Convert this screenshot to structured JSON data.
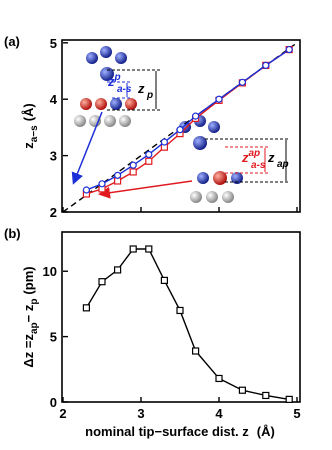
{
  "chart_data": [
    {
      "type": "line",
      "label": "(a)",
      "ylabel": [
        "z",
        "a−s",
        "(Å)"
      ],
      "xlim": [
        2,
        5
      ],
      "xticks": [
        2,
        3,
        4,
        5
      ],
      "ylim": [
        2,
        5.05
      ],
      "yticks": [
        2,
        3,
        4,
        5
      ],
      "series": [
        {
          "color": "#000000",
          "dash": true,
          "x": [
            2,
            5
          ],
          "values": [
            2,
            5
          ]
        },
        {
          "color": "#e0191f",
          "marker": "square",
          "x": [
            2.3,
            2.5,
            2.7,
            2.9,
            3.1,
            3.3,
            3.5,
            3.7,
            4.0,
            4.3,
            4.6,
            4.9
          ],
          "values": [
            2.32,
            2.41,
            2.55,
            2.71,
            2.9,
            3.15,
            3.39,
            3.66,
            3.98,
            4.29,
            4.6,
            4.88
          ]
        },
        {
          "color": "#1c2fd8",
          "marker": "circle",
          "x": [
            2.3,
            2.5,
            2.7,
            2.9,
            3.1,
            3.3,
            3.5,
            3.7,
            4.0,
            4.3,
            4.6,
            4.9
          ],
          "values": [
            2.39,
            2.5,
            2.65,
            2.83,
            3.02,
            3.24,
            3.46,
            3.7,
            4.0,
            4.3,
            4.6,
            4.88
          ]
        }
      ],
      "annotations": [
        {
          "base": "z",
          "sub": "p"
        },
        {
          "base": "z",
          "sub": "a-s",
          "sup": "p"
        },
        {
          "base": "z",
          "sub": "ap"
        },
        {
          "base": "z",
          "sub": "a-s",
          "sup": "ap"
        }
      ]
    },
    {
      "type": "line",
      "label": "(b)",
      "ylabel": [
        "Δz =z",
        "ap",
        "− z",
        "p",
        "(pm)"
      ],
      "xlabel": [
        "nominal tip−surface dist. z",
        "(Å)"
      ],
      "xlim": [
        2,
        5
      ],
      "xticks": [
        2,
        3,
        4,
        5
      ],
      "ylim": [
        0,
        13
      ],
      "yticks": [
        0,
        5,
        10
      ],
      "series": [
        {
          "color": "#000000",
          "marker": "square",
          "x": [
            2.3,
            2.5,
            2.7,
            2.9,
            3.1,
            3.3,
            3.5,
            3.7,
            4.0,
            4.3,
            4.6,
            4.9
          ],
          "values": [
            7.2,
            9.2,
            10.1,
            11.7,
            11.7,
            9.3,
            7.0,
            3.9,
            1.8,
            0.9,
            0.5,
            0.2
          ]
        }
      ]
    }
  ]
}
